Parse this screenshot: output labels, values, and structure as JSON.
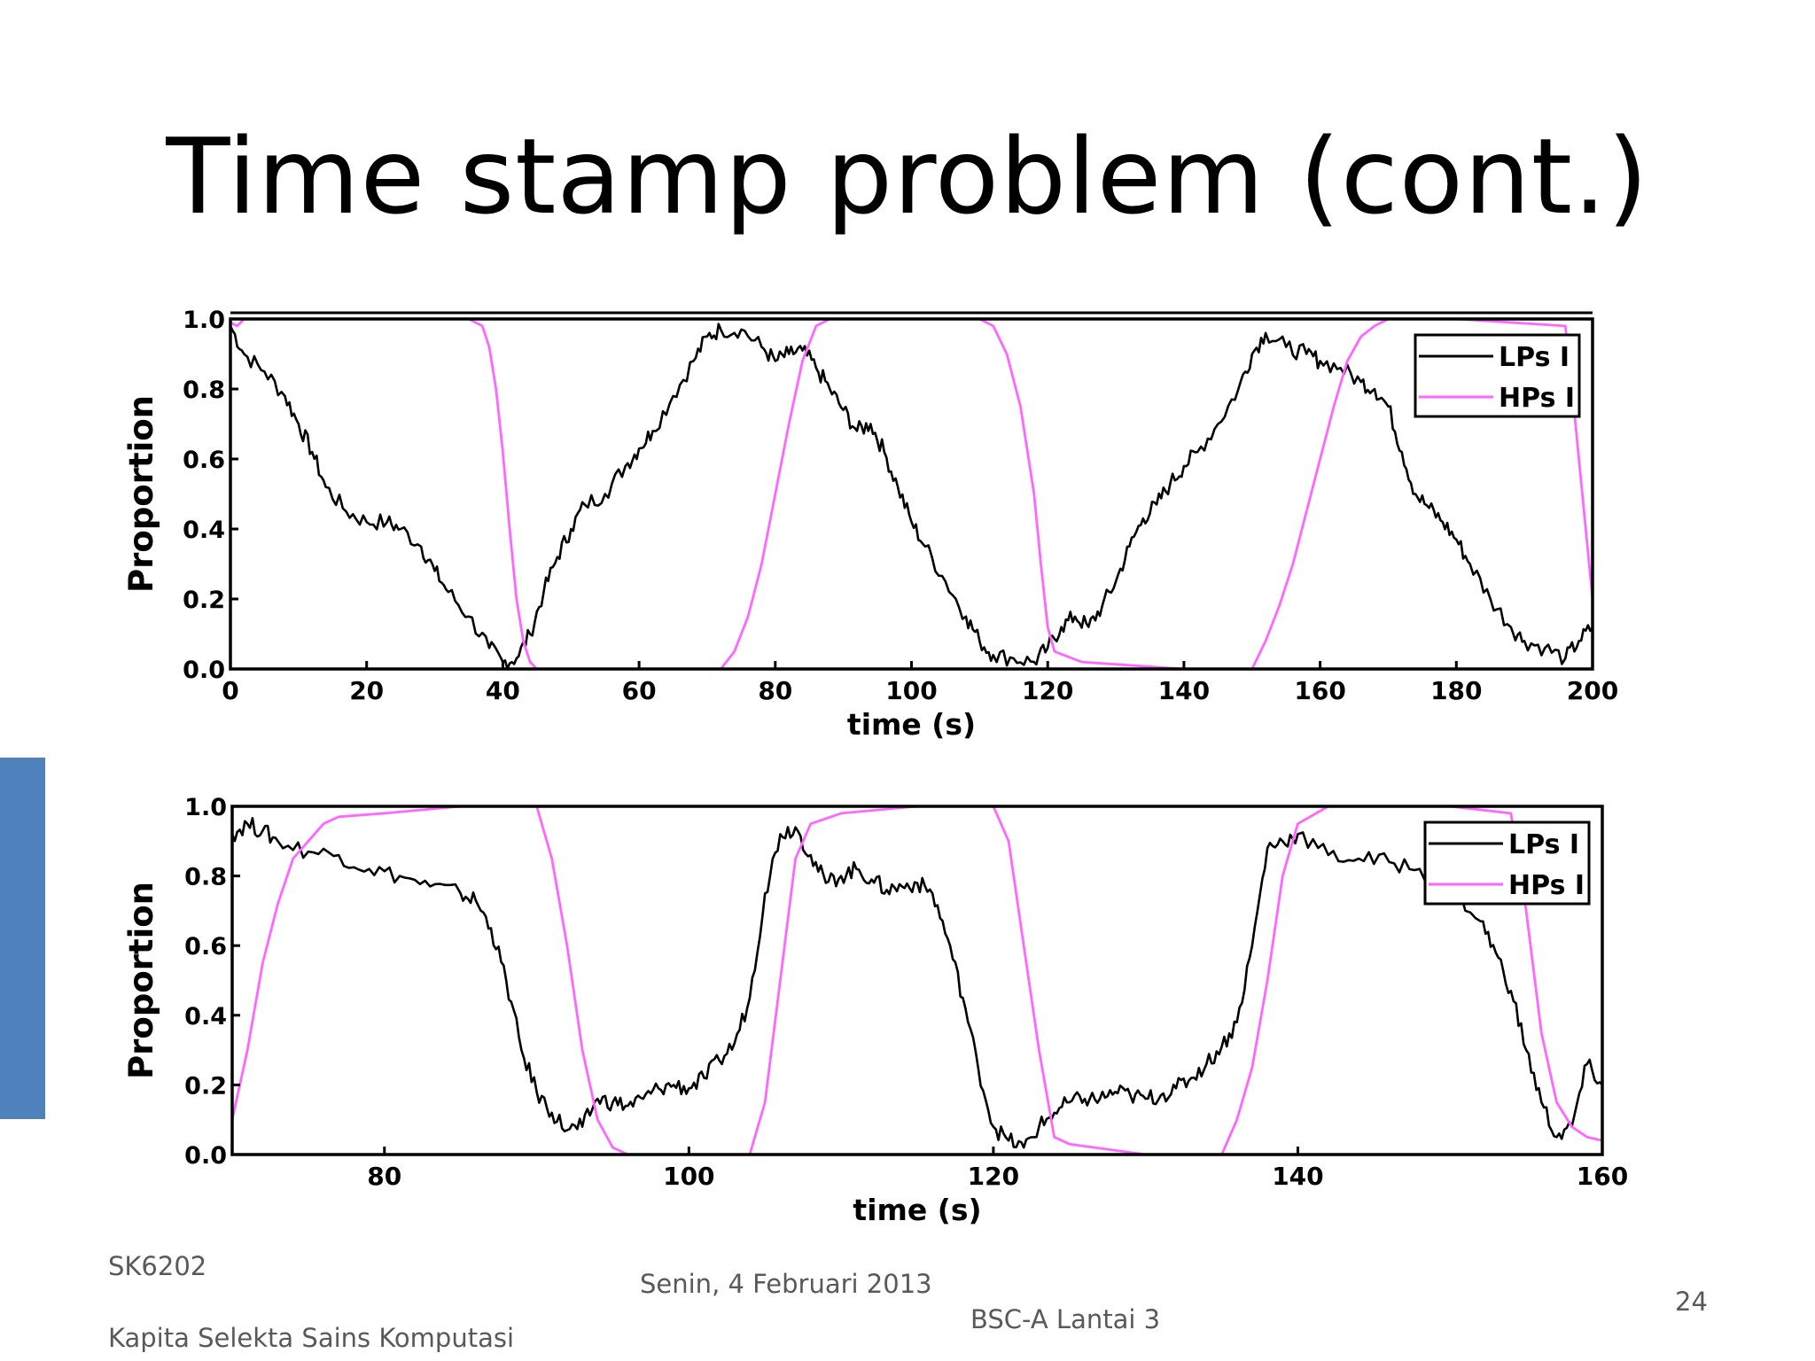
{
  "slide": {
    "title": "Time stamp problem (cont.)",
    "accent_color": "#4f81bd"
  },
  "footer": {
    "course_code": "SK6202",
    "course_name": "Kapita Selekta Sains Komputasi",
    "date": "Senin, 4 Februari 2013",
    "location": "BSC-A Lantai 3",
    "page_number": "24"
  },
  "chart_data": [
    {
      "type": "line",
      "xlabel": "time (s)",
      "ylabel": "Proportion",
      "xlim": [
        0,
        200
      ],
      "ylim": [
        0,
        1.0
      ],
      "xticks": [
        0,
        20,
        40,
        60,
        80,
        100,
        120,
        140,
        160,
        180,
        200
      ],
      "yticks": [
        0.0,
        0.2,
        0.4,
        0.6,
        0.8,
        1.0
      ],
      "ytick_labels": [
        "0.0",
        "0.2",
        "0.4",
        "0.6",
        "0.8",
        "1.0"
      ],
      "legend_position": "top-right",
      "series": [
        {
          "name": "LPs",
          "legend_label": "LPs I",
          "color": "#000000",
          "x": [
            0,
            2,
            5,
            8,
            10,
            12,
            14,
            17,
            20,
            23,
            25,
            28,
            30,
            32,
            35,
            38,
            40,
            42,
            44,
            46,
            48,
            50,
            52,
            55,
            58,
            60,
            62,
            65,
            68,
            70,
            72,
            75,
            78,
            80,
            82,
            84,
            86,
            88,
            90,
            92,
            94,
            96,
            98,
            100,
            102,
            105,
            108,
            110,
            112,
            115,
            118,
            120,
            122,
            124,
            126,
            128,
            130,
            132,
            134,
            136,
            138,
            140,
            142,
            145,
            148,
            150,
            152,
            155,
            158,
            160,
            163,
            166,
            168,
            170,
            172,
            174,
            176,
            178,
            180,
            182,
            185,
            188,
            190,
            193,
            196,
            198,
            200
          ],
          "values": [
            0.98,
            0.9,
            0.85,
            0.78,
            0.7,
            0.62,
            0.52,
            0.45,
            0.42,
            0.42,
            0.4,
            0.35,
            0.28,
            0.22,
            0.15,
            0.06,
            0.02,
            0.03,
            0.1,
            0.22,
            0.32,
            0.4,
            0.47,
            0.5,
            0.58,
            0.63,
            0.68,
            0.78,
            0.88,
            0.95,
            0.97,
            0.97,
            0.92,
            0.88,
            0.9,
            0.91,
            0.86,
            0.8,
            0.74,
            0.68,
            0.7,
            0.62,
            0.52,
            0.42,
            0.35,
            0.25,
            0.15,
            0.08,
            0.04,
            0.03,
            0.02,
            0.06,
            0.12,
            0.15,
            0.12,
            0.18,
            0.25,
            0.35,
            0.43,
            0.47,
            0.53,
            0.58,
            0.62,
            0.7,
            0.8,
            0.9,
            0.96,
            0.92,
            0.9,
            0.88,
            0.86,
            0.82,
            0.8,
            0.75,
            0.62,
            0.5,
            0.46,
            0.42,
            0.37,
            0.3,
            0.2,
            0.12,
            0.08,
            0.06,
            0.03,
            0.08,
            0.12
          ]
        },
        {
          "name": "HPs",
          "legend_label": "HPs I",
          "color": "#ff66ff",
          "x": [
            0,
            1,
            2,
            35,
            37,
            38,
            39,
            40,
            41,
            42,
            43,
            44,
            45,
            50,
            60,
            72,
            74,
            76,
            78,
            80,
            82,
            84,
            86,
            88,
            90,
            100,
            110,
            112,
            114,
            116,
            118,
            119,
            120,
            121,
            125,
            140,
            150,
            152,
            154,
            156,
            158,
            160,
            162,
            164,
            166,
            168,
            170,
            180,
            196,
            197,
            198,
            199,
            200
          ],
          "values": [
            0.99,
            0.98,
            1.0,
            1.0,
            0.98,
            0.92,
            0.8,
            0.62,
            0.4,
            0.2,
            0.08,
            0.02,
            0.0,
            0.0,
            0.0,
            0.0,
            0.05,
            0.15,
            0.3,
            0.5,
            0.7,
            0.88,
            0.98,
            1.0,
            1.0,
            1.0,
            1.0,
            0.98,
            0.9,
            0.75,
            0.5,
            0.3,
            0.12,
            0.05,
            0.02,
            0.0,
            0.0,
            0.08,
            0.18,
            0.3,
            0.45,
            0.6,
            0.75,
            0.88,
            0.95,
            0.98,
            1.0,
            1.0,
            0.98,
            0.8,
            0.6,
            0.4,
            0.2
          ]
        }
      ]
    },
    {
      "type": "line",
      "xlabel": "time (s)",
      "ylabel": "Proportion",
      "xlim": [
        70,
        160
      ],
      "ylim": [
        0,
        1.0
      ],
      "xticks": [
        80,
        100,
        120,
        140,
        160
      ],
      "yticks": [
        0.0,
        0.2,
        0.4,
        0.6,
        0.8,
        1.0
      ],
      "ytick_labels": [
        "0.0",
        "0.2",
        "0.4",
        "0.6",
        "0.8",
        "1.0"
      ],
      "legend_position": "top-right",
      "series": [
        {
          "name": "LPs",
          "legend_label": "LPs I",
          "color": "#000000",
          "x": [
            70,
            71,
            72,
            73,
            75,
            77,
            79,
            81,
            83,
            85,
            86,
            87,
            88,
            89,
            90,
            91,
            92,
            93,
            94,
            95,
            96,
            97,
            98,
            99,
            100,
            101,
            102,
            103,
            104,
            105,
            106,
            107,
            108,
            109,
            110,
            111,
            112,
            113,
            114,
            115,
            116,
            117,
            118,
            119,
            120,
            121,
            122,
            123,
            124,
            125,
            126,
            127,
            128,
            129,
            130,
            131,
            132,
            133,
            134,
            135,
            136,
            137,
            138,
            139,
            140,
            142,
            144,
            146,
            148,
            150,
            152,
            153,
            154,
            155,
            156,
            157,
            158,
            159,
            160
          ],
          "values": [
            0.92,
            0.95,
            0.93,
            0.9,
            0.87,
            0.86,
            0.82,
            0.8,
            0.77,
            0.75,
            0.73,
            0.65,
            0.5,
            0.3,
            0.18,
            0.12,
            0.07,
            0.08,
            0.16,
            0.15,
            0.14,
            0.16,
            0.19,
            0.2,
            0.19,
            0.22,
            0.27,
            0.32,
            0.45,
            0.75,
            0.92,
            0.94,
            0.86,
            0.78,
            0.8,
            0.82,
            0.79,
            0.76,
            0.77,
            0.78,
            0.75,
            0.62,
            0.45,
            0.25,
            0.08,
            0.04,
            0.02,
            0.08,
            0.12,
            0.15,
            0.16,
            0.16,
            0.18,
            0.17,
            0.16,
            0.17,
            0.19,
            0.22,
            0.26,
            0.31,
            0.38,
            0.6,
            0.88,
            0.9,
            0.92,
            0.86,
            0.85,
            0.84,
            0.82,
            0.77,
            0.67,
            0.58,
            0.47,
            0.3,
            0.15,
            0.05,
            0.08,
            0.26,
            0.2
          ]
        },
        {
          "name": "HPs",
          "legend_label": "HPs I",
          "color": "#ff66ff",
          "x": [
            70,
            71,
            72,
            73,
            74,
            75,
            76,
            77,
            80,
            85,
            90,
            91,
            92,
            93,
            94,
            95,
            96,
            100,
            104,
            105,
            106,
            107,
            108,
            110,
            115,
            120,
            121,
            122,
            123,
            124,
            125,
            130,
            135,
            136,
            137,
            138,
            139,
            140,
            142,
            150,
            154,
            155,
            156,
            157,
            158,
            159,
            160
          ],
          "values": [
            0.1,
            0.3,
            0.55,
            0.72,
            0.85,
            0.9,
            0.95,
            0.97,
            0.98,
            1.0,
            1.0,
            0.85,
            0.6,
            0.3,
            0.1,
            0.02,
            0.0,
            0.0,
            0.0,
            0.15,
            0.5,
            0.85,
            0.95,
            0.98,
            1.0,
            1.0,
            0.9,
            0.6,
            0.3,
            0.05,
            0.03,
            0.0,
            0.0,
            0.1,
            0.25,
            0.5,
            0.8,
            0.95,
            1.0,
            1.0,
            0.98,
            0.7,
            0.35,
            0.15,
            0.08,
            0.05,
            0.04
          ]
        }
      ]
    }
  ]
}
